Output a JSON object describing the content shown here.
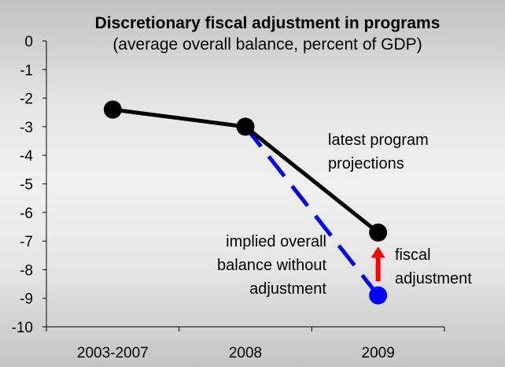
{
  "chart_data": {
    "type": "line",
    "title": "Discretionary fiscal adjustment in programs",
    "subtitle": "(average overall balance, percent of GDP)",
    "xlabel": "",
    "ylabel": "",
    "categories": [
      "2003-2007",
      "2008",
      "2009"
    ],
    "ylim": [
      -10,
      0
    ],
    "yticks": [
      0,
      -1,
      -2,
      -3,
      -4,
      -5,
      -6,
      -7,
      -8,
      -9,
      -10
    ],
    "grid": false,
    "series": [
      {
        "name": "latest program projections",
        "style": "solid",
        "color": "#000000",
        "values": [
          -2.4,
          -3.0,
          -6.7
        ]
      },
      {
        "name": "implied overall balance without adjustment",
        "style": "dashed",
        "color": "#0000ff",
        "x": [
          "2008",
          "2009"
        ],
        "values": [
          -3.0,
          -8.9
        ]
      }
    ],
    "annotations": [
      {
        "lines": [
          "latest program",
          "projections"
        ]
      },
      {
        "lines": [
          "implied overall",
          "balance without",
          "adjustment"
        ]
      },
      {
        "lines": [
          "fiscal",
          "adjustment"
        ],
        "arrow_color": "#ff0000",
        "from": -8.9,
        "to": -6.7,
        "at": "2009"
      }
    ]
  }
}
